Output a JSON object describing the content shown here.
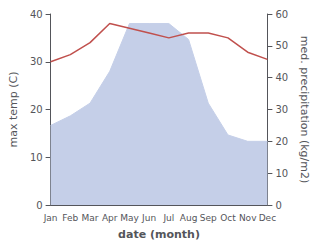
{
  "chart_data": {
    "type": "line",
    "categories": [
      "Jan",
      "Feb",
      "Mar",
      "Apr",
      "May",
      "Jun",
      "Jul",
      "Aug",
      "Sep",
      "Oct",
      "Nov",
      "Dec"
    ],
    "xlabel": "date (month)",
    "ylabel": "max temp (C)",
    "y2label": "med. precipitation (kg/m2)",
    "series": [
      {
        "type": "area",
        "axis": "y2",
        "color": "#c5cfe8",
        "values": [
          25,
          28,
          32,
          42,
          57,
          57,
          57,
          52,
          32,
          22,
          20,
          20
        ]
      },
      {
        "type": "line",
        "axis": "y",
        "color": "#c0504d",
        "values": [
          30.0,
          31.5,
          34.0,
          38.0,
          37.0,
          36.0,
          35.0,
          36.0,
          36.0,
          35.0,
          32.0,
          30.5
        ]
      }
    ],
    "ylim": [
      0,
      40
    ],
    "yticks": [
      0,
      10,
      20,
      30,
      40
    ],
    "y2lim": [
      0,
      60
    ],
    "y2ticks": [
      0,
      10,
      20,
      30,
      40,
      50,
      60
    ],
    "grid": false
  }
}
